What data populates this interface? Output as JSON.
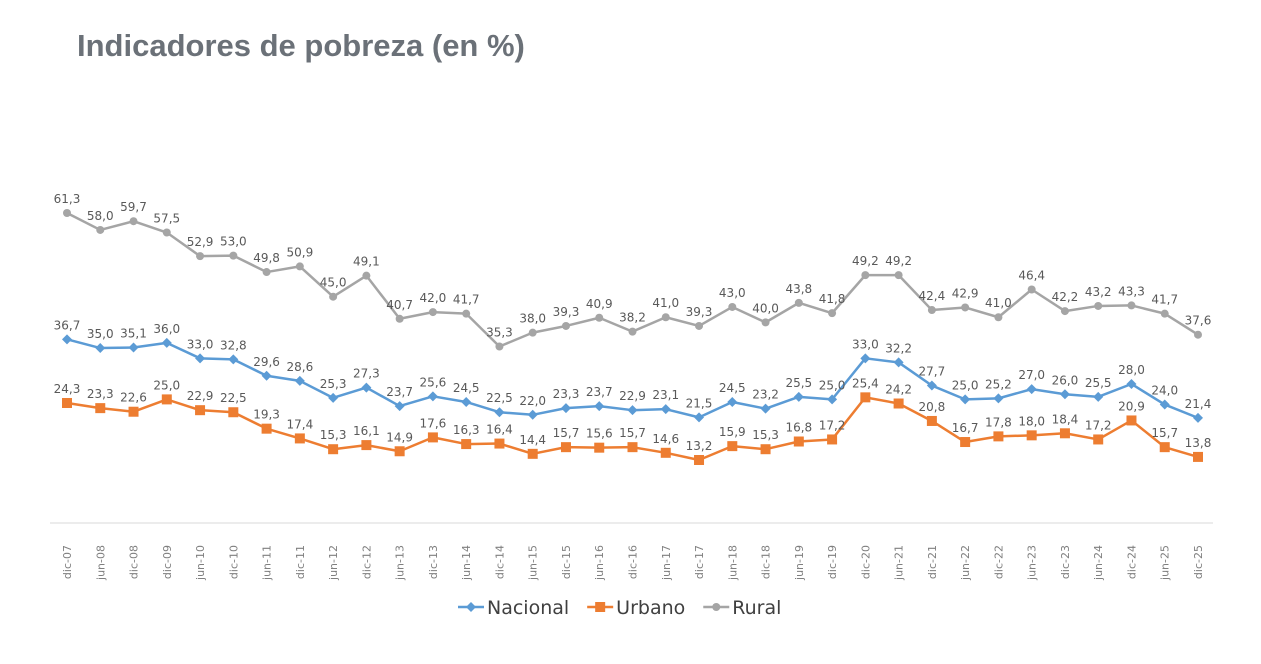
{
  "chart_data": {
    "type": "line",
    "title": "Indicadores de pobreza (en %)",
    "xlabel": "",
    "ylabel": "",
    "ylim": [
      0,
      65
    ],
    "grid": false,
    "legend_position": "bottom",
    "categories": [
      "dic-07",
      "jun-08",
      "dic-08",
      "dic-09",
      "jun-10",
      "dic-10",
      "jun-11",
      "dic-11",
      "jun-12",
      "dic-12",
      "jun-13",
      "dic-13",
      "jun-14",
      "dic-14",
      "jun-15",
      "dic-15",
      "jun-16",
      "dic-16",
      "jun-17",
      "dic-17",
      "jun-18",
      "dic-18",
      "jun-19",
      "dic-19",
      "dic-20",
      "jun-21",
      "dic-21",
      "jun-22",
      "dic-22",
      "jun-23",
      "dic-23",
      "jun-24",
      "dic-24",
      "jun-25",
      "dic-25"
    ],
    "series": [
      {
        "name": "Nacional",
        "color": "#5b9bd5",
        "marker": "diamond",
        "values": [
          36.7,
          35.0,
          35.1,
          36.0,
          33.0,
          32.8,
          29.6,
          28.6,
          25.3,
          27.3,
          23.7,
          25.6,
          24.5,
          22.5,
          22.0,
          23.3,
          23.7,
          22.9,
          23.1,
          21.5,
          24.5,
          23.2,
          25.5,
          25.0,
          33.0,
          32.2,
          27.7,
          25.0,
          25.2,
          27.0,
          26.0,
          25.5,
          28.0,
          24.0,
          21.4
        ]
      },
      {
        "name": "Urbano",
        "color": "#ed7d31",
        "marker": "square",
        "values": [
          24.3,
          23.3,
          22.6,
          25.0,
          22.9,
          22.5,
          19.3,
          17.4,
          15.3,
          16.1,
          14.9,
          17.6,
          16.3,
          16.4,
          14.4,
          15.7,
          15.6,
          15.7,
          14.6,
          13.2,
          15.9,
          15.3,
          16.8,
          17.2,
          25.4,
          24.2,
          20.8,
          16.7,
          17.8,
          18.0,
          18.4,
          17.2,
          20.9,
          15.7,
          13.8
        ]
      },
      {
        "name": "Rural",
        "color": "#a5a5a5",
        "marker": "circle",
        "values": [
          61.3,
          58.0,
          59.7,
          57.5,
          52.9,
          53.0,
          49.8,
          50.9,
          45.0,
          49.1,
          40.7,
          42.0,
          41.7,
          35.3,
          38.0,
          39.3,
          40.9,
          38.2,
          41.0,
          39.3,
          43.0,
          40.0,
          43.8,
          41.8,
          49.2,
          49.2,
          42.4,
          42.9,
          41.0,
          46.4,
          42.2,
          43.2,
          43.3,
          41.7,
          37.6
        ]
      }
    ]
  }
}
